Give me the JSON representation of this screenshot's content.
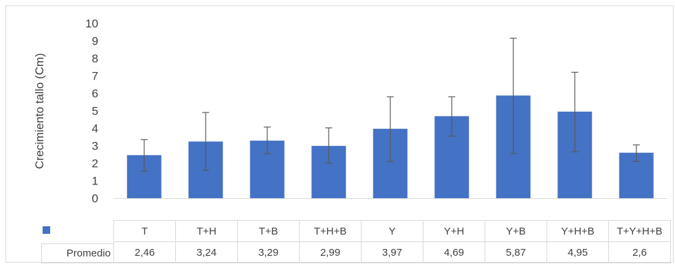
{
  "chart_data": {
    "type": "bar",
    "title": "",
    "xlabel": "",
    "ylabel": "Crecimiento tallo (Cm)",
    "ylim": [
      0,
      10
    ],
    "yticks": [
      0,
      1,
      2,
      3,
      4,
      5,
      6,
      7,
      8,
      9,
      10
    ],
    "grid": false,
    "categories": [
      "T",
      "T+H",
      "T+B",
      "T+H+B",
      "Y",
      "Y+H",
      "Y+B",
      "Y+H+B",
      "T+Y+H+B"
    ],
    "series": [
      {
        "name": "Promedio",
        "color": "#4472c4",
        "values": [
          2.46,
          3.24,
          3.29,
          2.99,
          3.97,
          4.69,
          5.87,
          4.95,
          2.6
        ],
        "error_low": [
          1.55,
          1.6,
          2.55,
          2.0,
          2.1,
          3.55,
          2.55,
          2.65,
          2.1
        ],
        "error_high": [
          3.35,
          4.9,
          4.07,
          4.02,
          5.8,
          5.8,
          9.15,
          7.2,
          3.05
        ]
      }
    ],
    "data_table": {
      "row_label": "Promedio",
      "values_text": [
        "2,46",
        "3,24",
        "3,29",
        "2,99",
        "3,97",
        "4,69",
        "5,87",
        "4,95",
        "2,6"
      ]
    }
  }
}
